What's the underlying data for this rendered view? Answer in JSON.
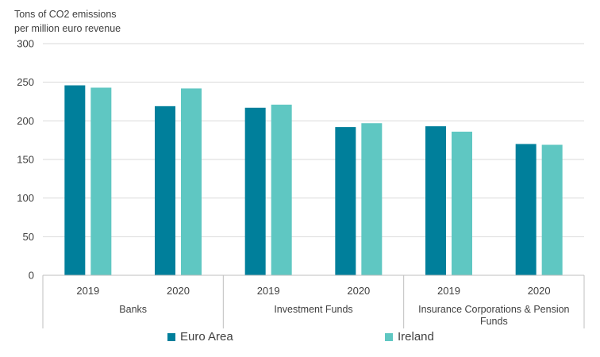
{
  "chart_data": {
    "type": "bar",
    "ylabel_lines": [
      "Tons of CO2  emissions",
      "per million  euro revenue"
    ],
    "ylim": [
      0,
      300
    ],
    "yticks": [
      0,
      50,
      100,
      150,
      200,
      250,
      300
    ],
    "grid": true,
    "groups": [
      {
        "label_lines": [
          "Banks"
        ],
        "years": [
          "2019",
          "2020"
        ]
      },
      {
        "label_lines": [
          "Investment Funds"
        ],
        "years": [
          "2019",
          "2020"
        ]
      },
      {
        "label_lines": [
          "Insurance Corporations & Pension",
          "Funds"
        ],
        "years": [
          "2019",
          "2020"
        ]
      }
    ],
    "categories": [
      "Banks 2019",
      "Banks 2020",
      "Investment Funds 2019",
      "Investment Funds 2020",
      "Insurance Corporations & Pension Funds 2019",
      "Insurance Corporations & Pension Funds 2020"
    ],
    "series": [
      {
        "name": "Euro Area",
        "color": "#007f9b",
        "values": [
          246,
          219,
          217,
          192,
          193,
          170
        ]
      },
      {
        "name": "Ireland",
        "color": "#5fc7c2",
        "values": [
          243,
          242,
          221,
          197,
          186,
          169
        ]
      }
    ],
    "legend_position": "bottom"
  }
}
